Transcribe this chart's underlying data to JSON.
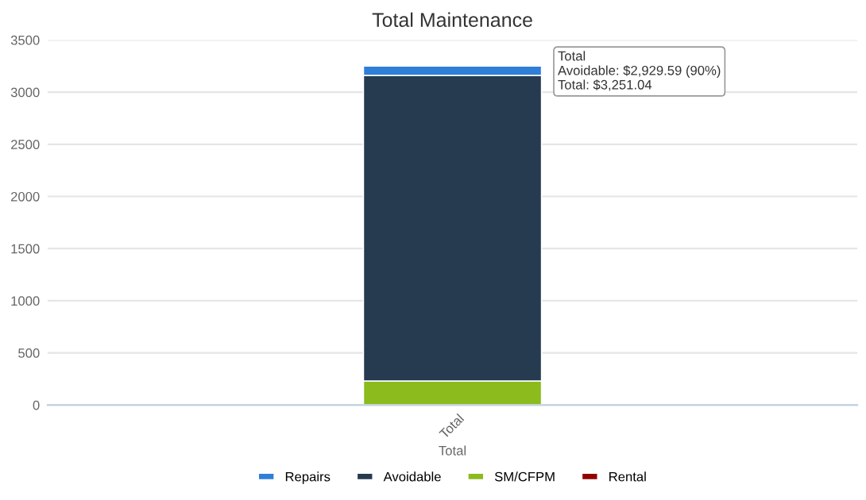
{
  "chart_data": {
    "type": "bar",
    "title": "Total Maintenance",
    "xlabel": "Total",
    "categories": [
      "Total"
    ],
    "stacked": true,
    "series": [
      {
        "name": "Rental",
        "color": "#910000",
        "values": [
          0
        ]
      },
      {
        "name": "SM/CFPM",
        "color": "#8bbb1d",
        "values": [
          230
        ]
      },
      {
        "name": "Avoidable",
        "color": "#263a50",
        "values": [
          2930
        ]
      },
      {
        "name": "Repairs",
        "color": "#2f7ed8",
        "values": [
          90
        ]
      }
    ],
    "ylim": [
      0,
      3500
    ],
    "yticks": [
      0,
      500,
      1000,
      1500,
      2000,
      2500,
      3000,
      3500
    ],
    "grid": "y",
    "legend": "bottom",
    "annotations": [
      "Total",
      "Avoidable: $2,929.59 (90%)",
      "Total: $3,251.04"
    ]
  }
}
